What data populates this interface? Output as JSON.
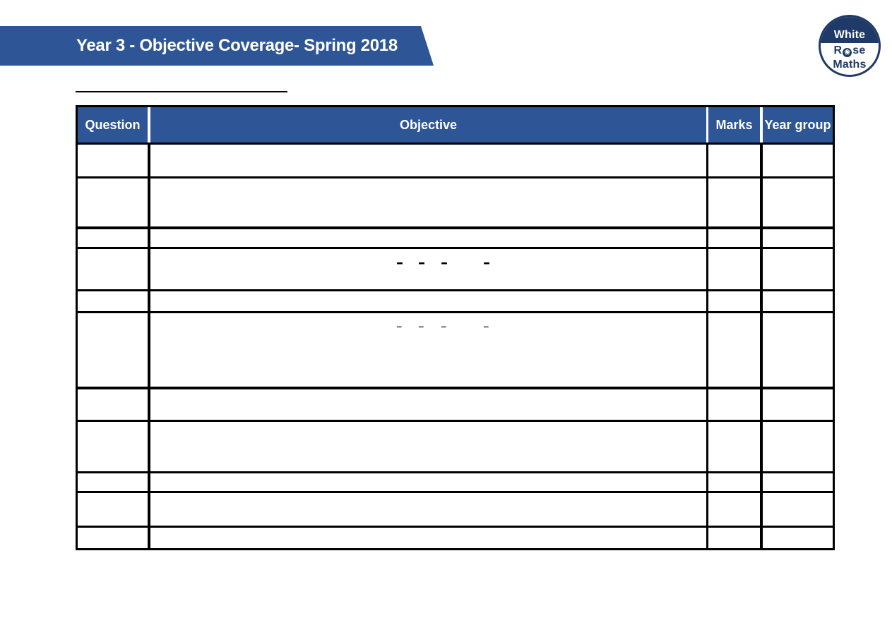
{
  "banner": {
    "title": "Year 3 - Objective Coverage- Spring 2018"
  },
  "logo": {
    "top_text": "White",
    "rose_prefix": "R",
    "rose_icon_glyph": "❀",
    "rose_suffix": "se",
    "bottom_text": "Maths"
  },
  "colors": {
    "banner_blue": "#2E5596",
    "logo_navy": "#1F3A68",
    "grid_black": "#000000"
  },
  "table": {
    "headers": [
      "Question",
      "Objective",
      "Marks",
      "Year group"
    ],
    "rows": [
      {
        "question": "",
        "objective": "",
        "marks": "",
        "year_group": ""
      },
      {
        "question": "",
        "objective": "",
        "marks": "",
        "year_group": ""
      },
      {
        "question": "",
        "objective": "",
        "marks": "",
        "year_group": ""
      },
      {
        "question": "",
        "objective": "",
        "marks": "",
        "year_group": "",
        "objective_dashes": [
          "–",
          "–",
          "–",
          "–"
        ],
        "dash_style": "bold"
      },
      {
        "question": "",
        "objective": "",
        "marks": "",
        "year_group": ""
      },
      {
        "question": "",
        "objective": "",
        "marks": "",
        "year_group": "",
        "objective_dashes": [
          "–",
          "–",
          "–",
          "–"
        ],
        "dash_style": "thin"
      },
      {
        "question": "",
        "objective": "",
        "marks": "",
        "year_group": ""
      },
      {
        "question": "",
        "objective": "",
        "marks": "",
        "year_group": ""
      },
      {
        "question": "",
        "objective": "",
        "marks": "",
        "year_group": ""
      },
      {
        "question": "",
        "objective": "",
        "marks": "",
        "year_group": ""
      },
      {
        "question": "",
        "objective": "",
        "marks": "",
        "year_group": ""
      }
    ]
  }
}
